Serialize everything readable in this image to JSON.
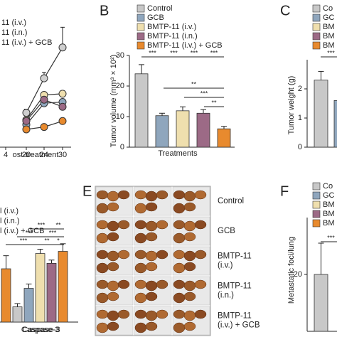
{
  "chart_data": [
    {
      "type": "line",
      "x_label": "ost-treatment",
      "categories": [
        "4",
        "20",
        "24",
        "30"
      ],
      "ylim": [
        0,
        100
      ],
      "series": [
        {
          "name": null,
          "color": "#cfcfcf",
          "values": [
            null,
            29,
            58,
            84
          ],
          "errors": [
            null,
            3,
            5,
            17
          ]
        },
        {
          "name": null,
          "color": "#8fa6bd",
          "values": [
            null,
            19,
            37,
            38
          ]
        },
        {
          "name": "11 (i.v.)",
          "color": "#efdfae",
          "values": [
            null,
            23,
            44,
            45
          ]
        },
        {
          "name": "11 (i.n.)",
          "color": "#9c6a86",
          "values": [
            null,
            22,
            40,
            34
          ]
        },
        {
          "name": "11 (i.v.) + GCB",
          "color": "#e88a2e",
          "values": [
            null,
            15,
            17,
            22
          ]
        }
      ]
    },
    {
      "type": "bar",
      "panel": "B",
      "y_label": "Tumor volume (mm³ × 10²)",
      "x_label": "Treatments",
      "categories": [
        null
      ],
      "ylim": [
        0,
        30
      ],
      "yticks": [
        0,
        10,
        20,
        30
      ],
      "series": [
        {
          "name": "Control",
          "color": "#c8c8c8",
          "values": [
            24
          ],
          "errors": [
            3
          ]
        },
        {
          "name": "GCB",
          "color": "#8fa6bd",
          "values": [
            10.3
          ],
          "errors": [
            0.8
          ]
        },
        {
          "name": "BMTP-11 (i.v.)",
          "color": "#efdfae",
          "values": [
            11.9
          ],
          "errors": [
            1.3
          ]
        },
        {
          "name": "BMTP-11 (i.n.)",
          "color": "#9c6a86",
          "values": [
            11.1
          ],
          "errors": [
            1.2
          ]
        },
        {
          "name": "BMTP-11 (i.v.) + GCB",
          "color": "#e88a2e",
          "values": [
            6
          ],
          "errors": [
            0.8
          ]
        }
      ],
      "annotations": [
        "***",
        "***",
        "***",
        "***",
        "**",
        "***",
        "**"
      ]
    },
    {
      "type": "bar",
      "panel": "C",
      "y_label": "Tumor weight (g)",
      "categories": [
        null
      ],
      "ylim": [
        0,
        3
      ],
      "yticks": [
        0,
        1,
        2
      ],
      "series": [
        {
          "name": "Co",
          "color": "#c8c8c8",
          "values": [
            2.3
          ],
          "errors": [
            0.3
          ]
        },
        {
          "name": "GC",
          "color": "#8fa6bd",
          "values": [
            1.6
          ],
          "errors": [
            0.2
          ]
        },
        {
          "name": "BM",
          "color": "#efdfae",
          "values": [
            null
          ]
        },
        {
          "name": "BM",
          "color": "#9c6a86",
          "values": [
            null
          ]
        },
        {
          "name": "BM",
          "color": "#e88a2e",
          "values": [
            null
          ]
        }
      ],
      "annotations": [
        "***"
      ]
    },
    {
      "type": "bar",
      "categories": [
        null,
        "Caspase-3"
      ],
      "ylim": [
        0,
        100
      ],
      "series": [
        {
          "name": null,
          "color": "#c8c8c8",
          "values": [
            null,
            14
          ],
          "errors": [
            null,
            3
          ]
        },
        {
          "name": null,
          "color": "#8fa6bd",
          "values": [
            null,
            31
          ],
          "errors": [
            null,
            4
          ]
        },
        {
          "name": "l (i.v.)",
          "color": "#efdfae",
          "values": [
            null,
            63
          ],
          "errors": [
            null,
            4
          ]
        },
        {
          "name": "l (i.n.)",
          "color": "#9c6a86",
          "values": [
            null,
            54
          ],
          "errors": [
            null,
            3
          ]
        },
        {
          "name": "l (i.v.) + GCB",
          "color": "#e88a2e",
          "values": [
            49,
            65
          ],
          "errors": [
            12,
            7
          ]
        }
      ],
      "annotations": [
        "***",
        "***",
        "***",
        "**",
        "***",
        "**",
        "*"
      ]
    },
    {
      "type": "image-grid",
      "panel": "E",
      "row_labels": [
        "Control",
        "GCB",
        "BMTP-11\n(i.v.)",
        "BMTP-11\n(i.n.)",
        "BMTP-11\n(i.v.) + GCB"
      ]
    },
    {
      "type": "bar",
      "panel": "F",
      "y_label": "Metastatic foci/lung",
      "categories": [
        null
      ],
      "ylim": [
        0,
        40
      ],
      "yticks": [
        20
      ],
      "series": [
        {
          "name": "Co",
          "color": "#c8c8c8",
          "values": [
            20
          ],
          "errors": [
            11
          ]
        },
        {
          "name": "GC",
          "color": "#8fa6bd",
          "values": [
            null
          ]
        },
        {
          "name": "BM",
          "color": "#efdfae",
          "values": [
            null
          ]
        },
        {
          "name": "BM",
          "color": "#9c6a86",
          "values": [
            null
          ]
        },
        {
          "name": "BM",
          "color": "#e88a2e",
          "values": [
            null
          ]
        }
      ],
      "annotations": [
        "***"
      ]
    }
  ]
}
